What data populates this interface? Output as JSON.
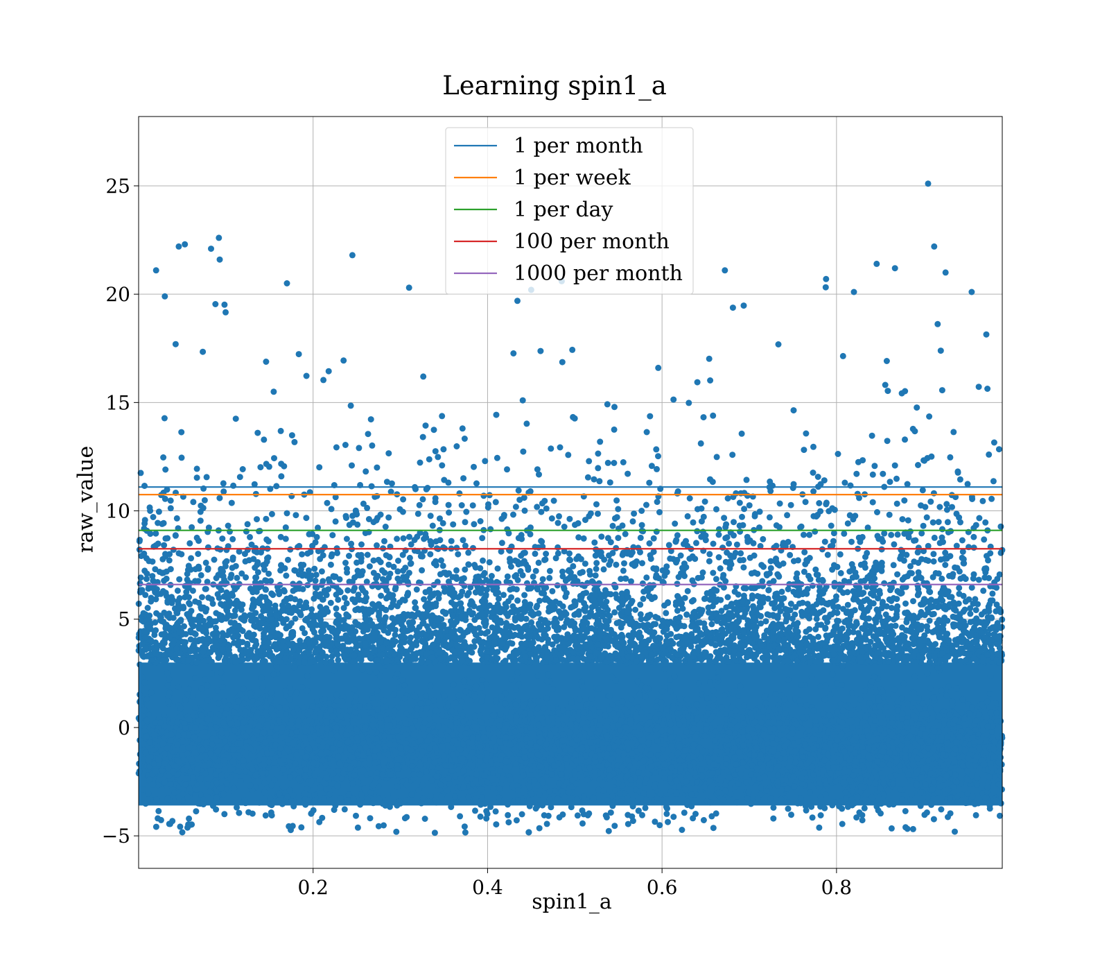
{
  "chart_data": {
    "type": "scatter",
    "title": "Learning spin1_a",
    "xlabel": "spin1_a",
    "ylabel": "raw_value",
    "xlim": [
      0.0,
      0.99
    ],
    "ylim": [
      -6.5,
      28.2
    ],
    "xticks": [
      0.2,
      0.4,
      0.6,
      0.8
    ],
    "xtick_labels": [
      "0.2",
      "0.4",
      "0.6",
      "0.8"
    ],
    "yticks": [
      -5,
      0,
      5,
      10,
      15,
      20,
      25
    ],
    "ytick_labels": [
      "−5",
      "0",
      "5",
      "10",
      "15",
      "20",
      "25"
    ],
    "grid": true,
    "legend_position": "top-center",
    "scatter_color": "#1f77b4",
    "scatter_distribution": {
      "x_range": [
        0.0,
        0.99
      ],
      "dense_band": [
        -4.5,
        4.0
      ],
      "sparse_range": [
        4.0,
        20.5
      ]
    },
    "outliers": [
      {
        "x": 0.02,
        "y": 21.1
      },
      {
        "x": 0.046,
        "y": 22.2
      },
      {
        "x": 0.053,
        "y": 22.3
      },
      {
        "x": 0.083,
        "y": 22.1
      },
      {
        "x": 0.092,
        "y": 22.6
      },
      {
        "x": 0.093,
        "y": 21.6
      },
      {
        "x": 0.245,
        "y": 21.8
      },
      {
        "x": 0.672,
        "y": 21.1
      },
      {
        "x": 0.846,
        "y": 21.4
      },
      {
        "x": 0.867,
        "y": 21.2
      },
      {
        "x": 0.905,
        "y": 25.1
      },
      {
        "x": 0.912,
        "y": 22.2
      },
      {
        "x": 0.925,
        "y": 21.0
      },
      {
        "x": 0.03,
        "y": 19.9
      },
      {
        "x": 0.17,
        "y": 20.5
      },
      {
        "x": 0.31,
        "y": 20.3
      },
      {
        "x": 0.45,
        "y": 20.2
      },
      {
        "x": 0.788,
        "y": 20.7
      },
      {
        "x": 0.82,
        "y": 20.1
      },
      {
        "x": 0.955,
        "y": 20.1
      },
      {
        "x": 0.485,
        "y": 20.6
      },
      {
        "x": 0.065,
        "y": 0.0
      }
    ],
    "series": [
      {
        "name": "1 per month",
        "y": 11.1,
        "color": "#1f77b4"
      },
      {
        "name": "1 per week",
        "y": 10.75,
        "color": "#ff7f0e"
      },
      {
        "name": "1 per day",
        "y": 9.1,
        "color": "#2ca02c"
      },
      {
        "name": "100 per month",
        "y": 8.25,
        "color": "#d62728"
      },
      {
        "name": "1000 per month",
        "y": 6.6,
        "color": "#9467bd"
      }
    ]
  }
}
